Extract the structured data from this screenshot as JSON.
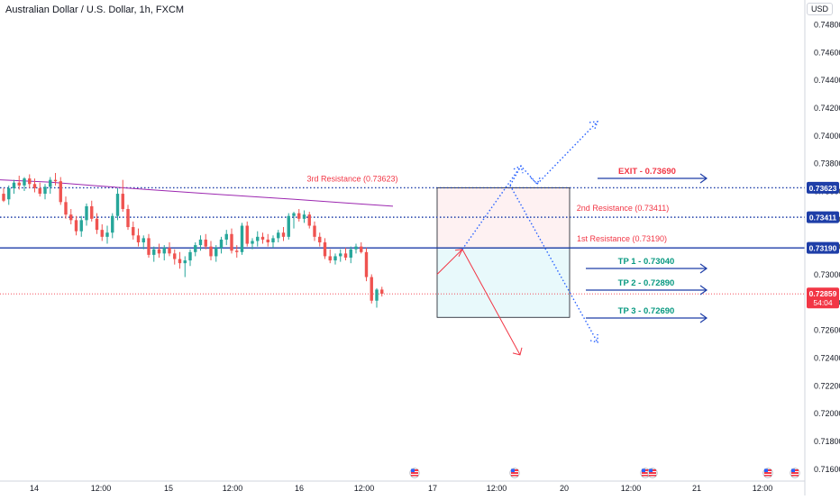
{
  "header": {
    "symbol_title": "Australian Dollar / U.S. Dollar, 1h, FXCM",
    "currency": "USD"
  },
  "colors": {
    "bull": "#26a69a",
    "bear": "#ef5350",
    "ma": "#9c27b0",
    "resistance_blue": "#1e3ea8",
    "tp_green": "#089981",
    "exit_red": "#f23645",
    "red_arrow": "#f23645",
    "dotted_blue": "#2962ff",
    "price_tag": "#f23645",
    "level_tag": "#1e3ea8"
  },
  "chart_data": {
    "type": "candlestick",
    "y_axis": {
      "ticks": [
        "0.74800",
        "0.74600",
        "0.74400",
        "0.74200",
        "0.74000",
        "0.73800",
        "0.73600",
        "0.73400",
        "0.73200",
        "0.73000",
        "0.72800",
        "0.72600",
        "0.72400",
        "0.72200",
        "0.72000",
        "0.71800",
        "0.71600"
      ]
    },
    "x_axis": {
      "ticks": [
        "14",
        "12:00",
        "15",
        "12:00",
        "16",
        "12:00",
        "17",
        "12:00",
        "20",
        "12:00",
        "21",
        "12:00"
      ]
    },
    "levels": [
      {
        "name": "3rd Resistance (0.73623)",
        "price": 0.73623,
        "tag": "0.73623",
        "style": "dotted"
      },
      {
        "name": "2nd Resistance (0.73411)",
        "price": 0.73411,
        "tag": "0.73411",
        "style": "dotted"
      },
      {
        "name": "1st Resistance (0.73190)",
        "price": 0.7319,
        "tag": "0.73190",
        "style": "solid"
      }
    ],
    "current_price": {
      "price": 0.72859,
      "tag": "0.72859",
      "countdown": "54:04"
    },
    "targets": [
      {
        "label": "EXIT - 0.73690",
        "price": 0.7369,
        "kind": "exit"
      },
      {
        "label": "TP 1 - 0.73040",
        "price": 0.7304,
        "kind": "tp"
      },
      {
        "label": "TP 2 - 0.72890",
        "price": 0.7289,
        "kind": "tp"
      },
      {
        "label": "TP 3 - 0.72690",
        "price": 0.7269,
        "kind": "tp"
      }
    ],
    "zones": [
      {
        "kind": "stop",
        "top": 0.73623,
        "bottom": 0.7319
      },
      {
        "kind": "target",
        "top": 0.7319,
        "bottom": 0.7269
      }
    ],
    "candles": [
      [
        0.7358,
        0.7362,
        0.7352,
        0.7353
      ],
      [
        0.7354,
        0.7364,
        0.735,
        0.7362
      ],
      [
        0.7362,
        0.7368,
        0.7358,
        0.7366
      ],
      [
        0.7366,
        0.7371,
        0.7361,
        0.7364
      ],
      [
        0.7364,
        0.737,
        0.736,
        0.7369
      ],
      [
        0.7369,
        0.7372,
        0.7362,
        0.7365
      ],
      [
        0.7365,
        0.7369,
        0.7359,
        0.7362
      ],
      [
        0.7362,
        0.7366,
        0.7356,
        0.7358
      ],
      [
        0.7358,
        0.7365,
        0.7354,
        0.7363
      ],
      [
        0.7363,
        0.737,
        0.7358,
        0.7368
      ],
      [
        0.7368,
        0.7373,
        0.7364,
        0.7367
      ],
      [
        0.7367,
        0.737,
        0.735,
        0.7352
      ],
      [
        0.7352,
        0.7356,
        0.734,
        0.7343
      ],
      [
        0.7343,
        0.7347,
        0.7336,
        0.7339
      ],
      [
        0.7339,
        0.7342,
        0.7328,
        0.7331
      ],
      [
        0.7331,
        0.7342,
        0.7327,
        0.7339
      ],
      [
        0.7339,
        0.7351,
        0.7335,
        0.7349
      ],
      [
        0.7349,
        0.7353,
        0.7338,
        0.734
      ],
      [
        0.734,
        0.7344,
        0.7329,
        0.7332
      ],
      [
        0.7332,
        0.7336,
        0.7324,
        0.7327
      ],
      [
        0.7327,
        0.7335,
        0.7322,
        0.733
      ],
      [
        0.733,
        0.7344,
        0.7326,
        0.7342
      ],
      [
        0.7342,
        0.7362,
        0.7339,
        0.7358
      ],
      [
        0.7358,
        0.7368,
        0.7345,
        0.7347
      ],
      [
        0.7347,
        0.735,
        0.7332,
        0.7334
      ],
      [
        0.7334,
        0.7338,
        0.7325,
        0.7328
      ],
      [
        0.7328,
        0.7333,
        0.732,
        0.7323
      ],
      [
        0.7323,
        0.7328,
        0.7318,
        0.7326
      ],
      [
        0.7326,
        0.7329,
        0.7312,
        0.7314
      ],
      [
        0.7314,
        0.732,
        0.7309,
        0.7318
      ],
      [
        0.7318,
        0.7322,
        0.7312,
        0.7315
      ],
      [
        0.7315,
        0.7321,
        0.731,
        0.7319
      ],
      [
        0.7319,
        0.7323,
        0.7313,
        0.7315
      ],
      [
        0.7315,
        0.7318,
        0.7307,
        0.7311
      ],
      [
        0.7311,
        0.7316,
        0.7304,
        0.7308
      ],
      [
        0.7308,
        0.7313,
        0.7298,
        0.731
      ],
      [
        0.731,
        0.7318,
        0.7306,
        0.7316
      ],
      [
        0.7316,
        0.7323,
        0.7313,
        0.7321
      ],
      [
        0.7321,
        0.7328,
        0.7317,
        0.7325
      ],
      [
        0.7325,
        0.7329,
        0.7318,
        0.732
      ],
      [
        0.732,
        0.7324,
        0.731,
        0.7313
      ],
      [
        0.7313,
        0.7321,
        0.7309,
        0.7319
      ],
      [
        0.7319,
        0.7327,
        0.7315,
        0.7325
      ],
      [
        0.7325,
        0.7332,
        0.7321,
        0.7329
      ],
      [
        0.7329,
        0.7333,
        0.7315,
        0.7317
      ],
      [
        0.7317,
        0.7321,
        0.7312,
        0.7316
      ],
      [
        0.7316,
        0.7337,
        0.7314,
        0.7335
      ],
      [
        0.7335,
        0.7338,
        0.732,
        0.7322
      ],
      [
        0.7322,
        0.7326,
        0.7318,
        0.7324
      ],
      [
        0.7324,
        0.7331,
        0.732,
        0.7327
      ],
      [
        0.7327,
        0.733,
        0.7322,
        0.7325
      ],
      [
        0.7325,
        0.7329,
        0.732,
        0.7323
      ],
      [
        0.7323,
        0.7328,
        0.7319,
        0.7326
      ],
      [
        0.7326,
        0.7332,
        0.7323,
        0.733
      ],
      [
        0.733,
        0.7334,
        0.7324,
        0.7327
      ],
      [
        0.7327,
        0.7344,
        0.7325,
        0.7342
      ],
      [
        0.7342,
        0.7345,
        0.7333,
        0.7344
      ],
      [
        0.7344,
        0.7347,
        0.7338,
        0.734
      ],
      [
        0.734,
        0.7346,
        0.7337,
        0.7343
      ],
      [
        0.7343,
        0.7345,
        0.7333,
        0.7335
      ],
      [
        0.7335,
        0.7338,
        0.7324,
        0.7327
      ],
      [
        0.7327,
        0.733,
        0.732,
        0.7323
      ],
      [
        0.7323,
        0.7326,
        0.7311,
        0.7313
      ],
      [
        0.7313,
        0.7318,
        0.7308,
        0.731
      ],
      [
        0.731,
        0.7315,
        0.7307,
        0.7313
      ],
      [
        0.7313,
        0.7318,
        0.7309,
        0.7315
      ],
      [
        0.7315,
        0.7319,
        0.731,
        0.7312
      ],
      [
        0.7312,
        0.732,
        0.7308,
        0.7318
      ],
      [
        0.7318,
        0.7322,
        0.7315,
        0.732
      ],
      [
        0.732,
        0.7323,
        0.7315,
        0.7316
      ],
      [
        0.7316,
        0.7319,
        0.7295,
        0.7298
      ],
      [
        0.7298,
        0.73,
        0.7279,
        0.7281
      ],
      [
        0.7281,
        0.729,
        0.7276,
        0.7289
      ],
      [
        0.7289,
        0.7291,
        0.7284,
        0.7286
      ]
    ],
    "moving_average": [
      0.7368,
      0.73664,
      0.73636,
      0.7361,
      0.73586,
      0.73562,
      0.7354,
      0.73515,
      0.7349
    ]
  }
}
